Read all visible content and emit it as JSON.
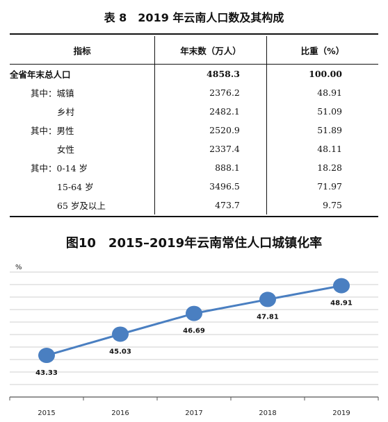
{
  "table": {
    "title": "表 8　2019 年云南人口数及其构成",
    "headers": [
      "指标",
      "年末数（万人）",
      "比重（%）"
    ],
    "rows": [
      {
        "label": "全省年末总人口",
        "value": "4858.3",
        "share": "100.00",
        "bold": true,
        "indent": 0
      },
      {
        "label": "其中：城镇",
        "value": "2376.2",
        "share": "48.91",
        "bold": false,
        "indent": 1
      },
      {
        "label": "乡村",
        "value": "2482.1",
        "share": "51.09",
        "bold": false,
        "indent": 2
      },
      {
        "label": "其中：男性",
        "value": "2520.9",
        "share": "51.89",
        "bold": false,
        "indent": 1
      },
      {
        "label": "女性",
        "value": "2337.4",
        "share": "48.11",
        "bold": false,
        "indent": 2
      },
      {
        "label": "其中：0-14 岁",
        "value": "888.1",
        "share": "18.28",
        "bold": false,
        "indent": 1
      },
      {
        "label": "15-64 岁",
        "value": "3496.5",
        "share": "71.97",
        "bold": false,
        "indent": 2
      },
      {
        "label": "65 岁及以上",
        "value": "473.7",
        "share": "9.75",
        "bold": false,
        "indent": 2
      }
    ]
  },
  "chart": {
    "title": "图10　2015–2019年云南常住人口城镇化率"
  },
  "chart_data": {
    "type": "line",
    "title": "图10　2015–2019年云南常住人口城镇化率",
    "ylabel": "%",
    "xlabel": "",
    "categories": [
      "2015",
      "2016",
      "2017",
      "2018",
      "2019"
    ],
    "values": [
      43.33,
      45.03,
      46.69,
      47.81,
      48.91
    ],
    "data_labels": [
      "43.33",
      "45.03",
      "46.69",
      "47.81",
      "48.91"
    ],
    "ylim": [
      40,
      50
    ],
    "grid": true,
    "line_color": "#4a7fc1",
    "marker_color": "#4a7fc1"
  }
}
